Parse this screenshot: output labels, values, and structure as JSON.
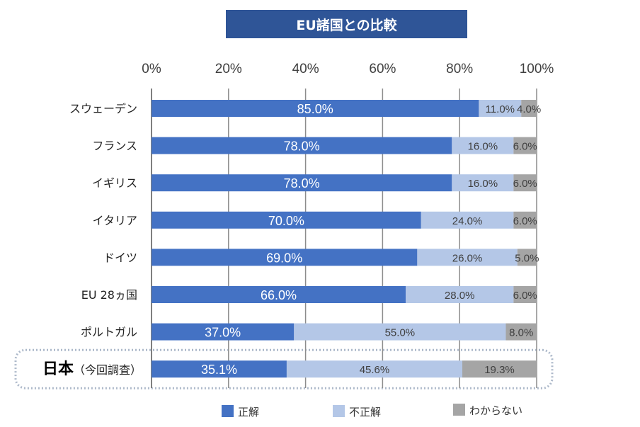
{
  "chart_data": {
    "type": "bar",
    "orientation": "horizontal",
    "stacked": "100%",
    "title": "EU諸国との比較",
    "categories": [
      "スウェーデン",
      "フランス",
      "イギリス",
      "イタリア",
      "ドイツ",
      "EU 28ヵ国",
      "ポルトガル",
      "日本（今回調査）"
    ],
    "highlighted_category": "日本（今回調査）",
    "series": [
      {
        "name": "正解",
        "color": "#4472c4",
        "values": [
          85.0,
          78.0,
          78.0,
          70.0,
          69.0,
          66.0,
          37.0,
          35.1
        ],
        "labels": [
          "85.0%",
          "78.0%",
          "78.0%",
          "70.0%",
          "69.0%",
          "66.0%",
          "37.0%",
          "35.1%"
        ]
      },
      {
        "name": "不正解",
        "color": "#b4c7e7",
        "values": [
          11.0,
          16.0,
          16.0,
          24.0,
          26.0,
          28.0,
          55.0,
          45.6
        ],
        "labels": [
          "11.0%",
          "16.0%",
          "16.0%",
          "24.0%",
          "26.0%",
          "28.0%",
          "55.0%",
          "45.6%"
        ]
      },
      {
        "name": "わからない",
        "color": "#a5a5a5",
        "values": [
          4.0,
          6.0,
          6.0,
          6.0,
          5.0,
          6.0,
          8.0,
          19.3
        ],
        "labels": [
          "4.0%",
          "6.0%",
          "6.0%",
          "6.0%",
          "5.0%",
          "6.0%",
          "8.0%",
          "19.3%"
        ]
      }
    ],
    "xlim": [
      0,
      100
    ],
    "xticks": [
      "0%",
      "20%",
      "40%",
      "60%",
      "80%",
      "100%"
    ],
    "xaxis_position": "top",
    "grid": true,
    "legend": "bottom"
  }
}
